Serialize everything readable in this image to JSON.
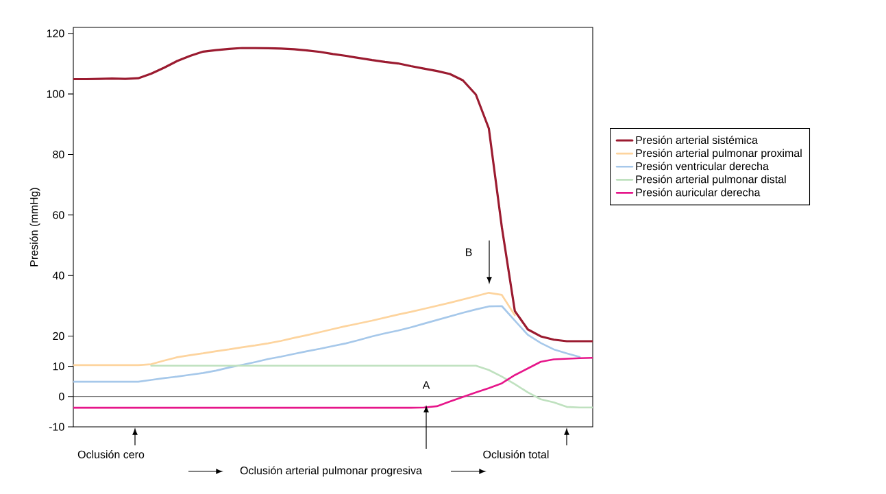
{
  "chart_data": {
    "type": "line",
    "ylabel": "Presión (mmHg)",
    "categories": [
      null,
      null,
      null,
      null,
      null,
      null,
      null,
      null,
      null,
      null,
      null,
      null,
      null,
      null,
      null,
      null,
      null,
      null,
      null,
      null,
      null,
      null,
      null,
      null,
      null,
      null,
      null,
      null,
      null,
      null,
      null,
      null,
      null,
      null,
      null,
      null,
      null,
      null,
      null,
      null,
      null
    ],
    "ylim": [
      -10,
      122
    ],
    "yticks": [
      -10,
      0,
      10,
      20,
      40,
      60,
      80,
      100,
      120
    ],
    "tick_labels": "y",
    "legend": "right",
    "marker": "none",
    "line_style": "solid",
    "ref_lines": [
      {
        "axis": "y",
        "value": 0,
        "color": "#000000"
      }
    ],
    "annotations": [
      "A",
      "B",
      "Oclusión cero",
      "Oclusión total",
      "Oclusión arterial pulmonar progresiva"
    ],
    "series": [
      {
        "name": "Presión arterial sistémica",
        "color": "#9b1b30",
        "values": [
          104.9,
          104.9,
          105,
          105.1,
          105,
          105.2,
          106.7,
          108.7,
          110.9,
          112.6,
          114,
          114.5,
          114.9,
          115.2,
          115.2,
          115.1,
          115,
          114.8,
          114.4,
          113.9,
          113.2,
          112.6,
          111.9,
          111.2,
          110.6,
          110.1,
          109.2,
          108.4,
          107.6,
          106.6,
          104.5,
          99.8,
          88.6,
          56,
          28.3,
          22.2,
          19.9,
          18.8,
          18.3,
          18.3,
          18.3
        ]
      },
      {
        "name": "Presión arterial pulmonar proximal",
        "color": "#fdd49e",
        "values": [
          10.4,
          10.4,
          10.4,
          10.4,
          10.4,
          10.4,
          10.7,
          11.9,
          13,
          13.7,
          14.3,
          15,
          15.6,
          16.3,
          16.9,
          17.6,
          18.4,
          19.4,
          20.3,
          21.3,
          22.3,
          23.3,
          24.2,
          25.1,
          26.1,
          27.1,
          28,
          29,
          30,
          31,
          32.1,
          33.2,
          34.3,
          33.6,
          26.9,
          null,
          null,
          null,
          null,
          null,
          null
        ]
      },
      {
        "name": "Presión ventricular derecha",
        "color": "#a6c8ea",
        "values": [
          4.9,
          4.9,
          4.9,
          4.9,
          4.9,
          4.9,
          5.5,
          6.1,
          6.6,
          7.2,
          7.8,
          8.6,
          9.6,
          10.5,
          11.4,
          12.4,
          13.2,
          14.1,
          15,
          15.8,
          16.7,
          17.6,
          18.7,
          19.9,
          20.9,
          21.8,
          22.9,
          24.1,
          25.3,
          26.5,
          27.7,
          28.8,
          29.8,
          29.9,
          25.1,
          20.4,
          17.7,
          15.6,
          14.3,
          13.1,
          null
        ]
      },
      {
        "name": "Presión arterial pulmonar distal",
        "color": "#bfe1bf",
        "values": [
          null,
          null,
          null,
          null,
          null,
          null,
          10.2,
          10.2,
          10.2,
          10.2,
          10.2,
          10.2,
          10.2,
          10.2,
          10.2,
          10.2,
          10.2,
          10.2,
          10.2,
          10.2,
          10.2,
          10.2,
          10.2,
          10.2,
          10.2,
          10.2,
          10.2,
          10.2,
          10.2,
          10.2,
          10.2,
          10.2,
          8.8,
          6.6,
          4.1,
          1.4,
          -0.9,
          -1.9,
          -3.4,
          -3.6,
          -3.6
        ]
      },
      {
        "name": "Presión auricular derecha",
        "color": "#e6168a",
        "values": [
          -3.7,
          -3.7,
          -3.7,
          -3.7,
          -3.7,
          -3.7,
          -3.7,
          -3.7,
          -3.7,
          -3.7,
          -3.7,
          -3.7,
          -3.7,
          -3.7,
          -3.7,
          -3.7,
          -3.7,
          -3.7,
          -3.7,
          -3.7,
          -3.7,
          -3.7,
          -3.7,
          -3.7,
          -3.7,
          -3.7,
          -3.7,
          -3.6,
          -3.2,
          -1.6,
          -0.1,
          1.4,
          2.8,
          4.4,
          7.1,
          9.3,
          11.5,
          12.3,
          12.5,
          12.7,
          12.8
        ]
      }
    ]
  }
}
